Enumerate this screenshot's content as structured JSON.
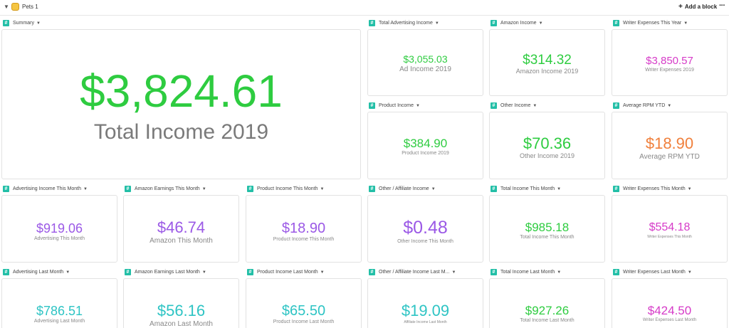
{
  "topbar": {
    "page_title": "Pets 1",
    "add_block_label": "Add a block",
    "more_label": "···"
  },
  "blocks": {
    "summary": {
      "title": "Summary",
      "value": "$3,824.61",
      "label": "Total Income 2019",
      "color": "#2ecc40"
    },
    "total_advertising_income": {
      "title": "Total Advertising Income",
      "value": "$3,055.03",
      "label": "Ad Income 2019",
      "color": "#2ecc40"
    },
    "amazon_income": {
      "title": "Amazon Income",
      "value": "$314.32",
      "label": "Amazon Income 2019",
      "color": "#2ecc40"
    },
    "writer_expenses_this_year": {
      "title": "Writer Expenses This Year",
      "value": "$3,850.57",
      "label": "Writer Expenses 2019",
      "color": "#d63bc8"
    },
    "product_income": {
      "title": "Product Income",
      "value": "$384.90",
      "label": "Product Income 2019",
      "color": "#2ecc40"
    },
    "other_income": {
      "title": "Other Income",
      "value": "$70.36",
      "label": "Other Income 2019",
      "color": "#2ecc40"
    },
    "average_rpm_ytd": {
      "title": "Average RPM YTD",
      "value": "$18.90",
      "label": "Average RPM YTD",
      "color": "#f0803c"
    },
    "advertising_income_this_month": {
      "title": "Advertising Income This Month",
      "value": "$919.06",
      "label": "Advertising This Month",
      "color": "#9b59e6"
    },
    "amazon_earnings_this_month": {
      "title": "Amazon Earnings This Month",
      "value": "$46.74",
      "label": "Amazon This Month",
      "color": "#9b59e6"
    },
    "product_income_this_month": {
      "title": "Product Income This Month",
      "value": "$18.90",
      "label": "Product Income This Month",
      "color": "#9b59e6"
    },
    "other_affiliate_income": {
      "title": "Other / Affiliate Income",
      "value": "$0.48",
      "label": "Other Income This Month",
      "color": "#9b59e6"
    },
    "total_income_this_month": {
      "title": "Total Income This Month",
      "value": "$985.18",
      "label": "Total Income This Month",
      "color": "#2ecc40"
    },
    "writer_expenses_this_month": {
      "title": "Writer Expenses This Month",
      "value": "$554.18",
      "label": "Writer Expenses This Month",
      "color": "#d63bc8"
    },
    "advertising_last_month": {
      "title": "Advertising Last Month",
      "value": "$786.51",
      "label": "Advertising Last Month",
      "color": "#2ec4c4"
    },
    "amazon_earnings_last_month": {
      "title": "Amazon Earnings Last Month",
      "value": "$56.16",
      "label": "Amazon Last Month",
      "color": "#2ec4c4"
    },
    "product_income_last_month": {
      "title": "Product Income Last Month",
      "value": "$65.50",
      "label": "Product Income Last Month",
      "color": "#2ec4c4"
    },
    "other_affiliate_income_last_month": {
      "title": "Other / Affiliate Income Last M...",
      "value": "$19.09",
      "label": "Affiliate Income Last Month",
      "color": "#2ec4c4"
    },
    "total_income_last_month": {
      "title": "Total Income Last Month",
      "value": "$927.26",
      "label": "Total Income Last Month",
      "color": "#2ecc40"
    },
    "writer_expenses_last_month": {
      "title": "Writer Expenses Last Month",
      "value": "$424.50",
      "label": "Writer Expenses Last Month",
      "color": "#d63bc8"
    }
  }
}
